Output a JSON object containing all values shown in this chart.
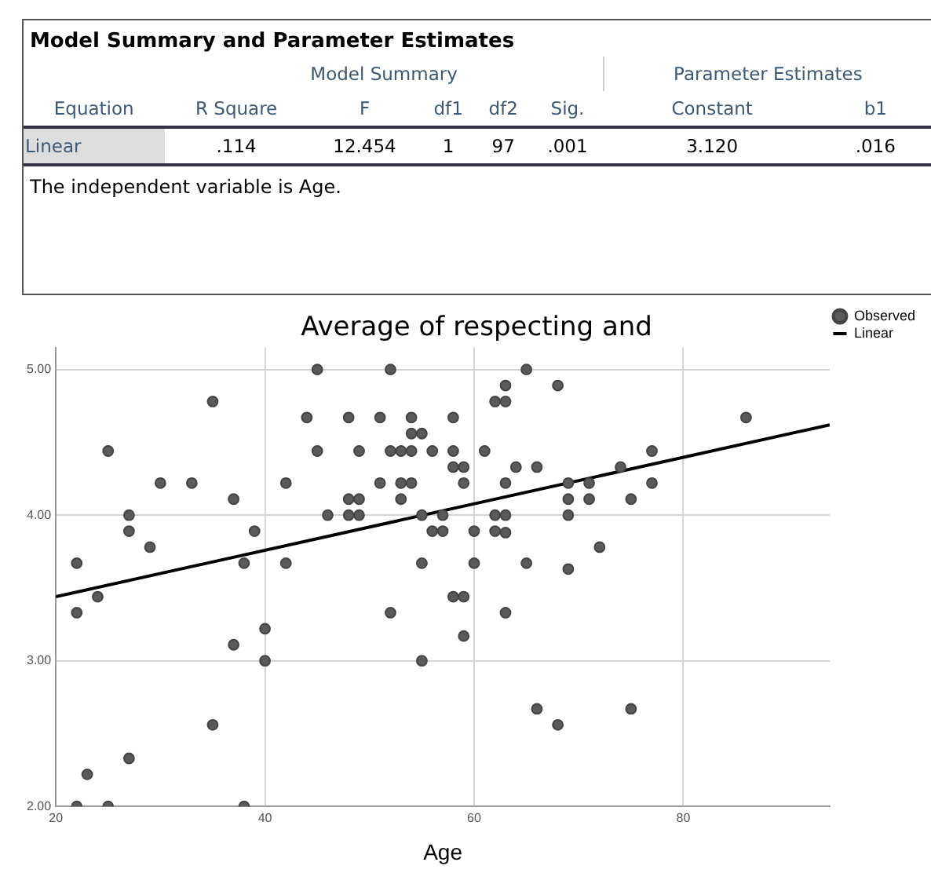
{
  "chart_data": [
    {
      "type": "other",
      "title": "Model Summary and Parameter Estimates",
      "categories": [
        "Equation",
        "R Square",
        "F",
        "df1",
        "df2",
        "Sig.",
        "Constant",
        "b1"
      ],
      "cell_labels": [
        [
          "Linear",
          ".114",
          "12.454",
          "1",
          "97",
          ".001",
          "3.120",
          ".016"
        ]
      ],
      "annotations": [
        "Model Summary",
        "Parameter Estimates",
        "The independent variable is Age."
      ]
    },
    {
      "type": "scatter",
      "title": "Average of respecting and",
      "xlabel": "Age",
      "xlim": [
        20,
        94
      ],
      "xticks": [
        20,
        40,
        60,
        80
      ],
      "ylim": [
        2,
        5.15
      ],
      "yticks": [
        {
          "value": 2,
          "label": "2.00"
        },
        {
          "value": 3,
          "label": "3.00"
        },
        {
          "value": 4,
          "label": "4.00"
        },
        {
          "value": 5,
          "label": "5.00"
        }
      ],
      "grid": true,
      "legend": "top right",
      "series": [
        {
          "name": "Observed",
          "type": "scatter",
          "marker": "circle",
          "color": "#5a5a5a",
          "x": [
            22,
            22,
            24,
            25,
            27,
            27,
            29,
            30,
            33,
            35,
            37,
            38,
            39,
            42,
            42,
            44,
            45,
            45,
            46,
            52,
            65,
            63,
            68,
            62,
            63,
            48,
            51,
            54,
            58,
            54,
            55,
            49,
            52,
            53,
            54,
            56,
            58,
            61,
            58,
            59,
            64,
            66,
            74,
            51,
            53,
            54,
            59,
            63,
            69,
            71,
            48,
            49,
            53,
            69,
            71,
            75,
            48,
            49,
            55,
            57,
            62,
            63,
            69,
            56,
            57,
            60,
            62,
            63,
            72,
            55,
            60,
            65,
            69,
            58,
            59,
            52,
            63,
            77,
            77,
            86,
            37,
            40,
            40,
            35,
            27,
            23,
            22,
            25,
            38,
            59,
            55,
            66,
            68,
            75
          ],
          "values": [
            3.67,
            3.33,
            3.44,
            4.44,
            4.0,
            3.89,
            3.78,
            4.22,
            4.22,
            4.78,
            4.11,
            3.67,
            3.89,
            4.22,
            3.67,
            4.67,
            5.0,
            4.44,
            4.0,
            5.0,
            5.0,
            4.89,
            4.89,
            4.78,
            4.78,
            4.67,
            4.67,
            4.67,
            4.67,
            4.56,
            4.56,
            4.44,
            4.44,
            4.44,
            4.44,
            4.44,
            4.44,
            4.44,
            4.33,
            4.33,
            4.33,
            4.33,
            4.33,
            4.22,
            4.22,
            4.22,
            4.22,
            4.22,
            4.22,
            4.22,
            4.11,
            4.11,
            4.11,
            4.11,
            4.11,
            4.11,
            4.0,
            4.0,
            4.0,
            4.0,
            4.0,
            4.0,
            4.0,
            3.89,
            3.89,
            3.89,
            3.89,
            3.88,
            3.78,
            3.67,
            3.67,
            3.67,
            3.63,
            3.44,
            3.44,
            3.33,
            3.33,
            4.44,
            4.22,
            4.67,
            3.11,
            3.22,
            3.0,
            2.56,
            2.33,
            2.22,
            2.0,
            2.0,
            2.0,
            3.17,
            3.0,
            2.67,
            2.56,
            2.67
          ]
        },
        {
          "name": "Linear",
          "type": "line",
          "marker": "none",
          "line_style": "solid",
          "color": "#000000",
          "x": [
            20,
            94
          ],
          "values": [
            3.44,
            4.62
          ]
        }
      ]
    }
  ]
}
